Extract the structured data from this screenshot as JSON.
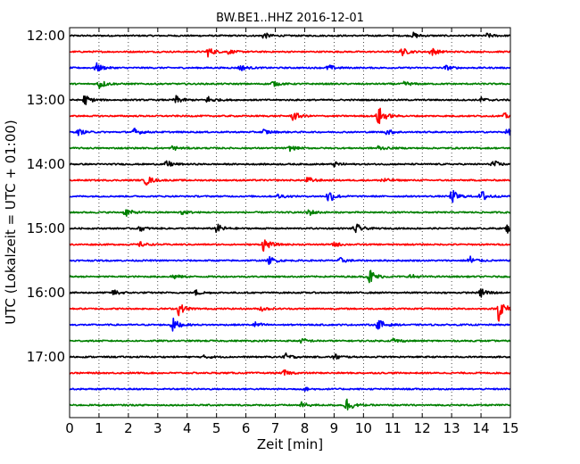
{
  "chart_data": {
    "type": "line",
    "title": "BW.BE1..HHZ 2016-12-01",
    "xlabel": "Zeit  [min]",
    "ylabel": "UTC (Lokalzeit = UTC + 01:00)",
    "xlim": [
      0,
      15
    ],
    "x_ticks": [
      "0",
      "1",
      "2",
      "3",
      "4",
      "5",
      "6",
      "7",
      "8",
      "9",
      "10",
      "11",
      "12",
      "13",
      "14",
      "15"
    ],
    "y_time_labels": [
      "12:00",
      "13:00",
      "14:00",
      "15:00",
      "16:00",
      "17:00"
    ],
    "grid": "vertical dotted lines at each minute",
    "colors": [
      "#000000",
      "#ff0000",
      "#0000ff",
      "#008000"
    ],
    "traces": [
      {
        "start": "12:00",
        "events": [
          [
            6.6,
            0.4
          ],
          [
            11.7,
            0.35
          ],
          [
            14.2,
            0.3
          ]
        ]
      },
      {
        "start": "12:15",
        "events": [
          [
            4.7,
            0.6
          ],
          [
            11.3,
            0.5
          ],
          [
            12.3,
            0.55
          ],
          [
            5.4,
            0.25
          ]
        ]
      },
      {
        "start": "12:30",
        "events": [
          [
            0.9,
            0.6
          ],
          [
            5.8,
            0.4
          ],
          [
            8.8,
            0.4
          ],
          [
            12.8,
            0.3
          ]
        ]
      },
      {
        "start": "12:45",
        "events": [
          [
            1.0,
            0.65
          ],
          [
            6.9,
            0.35
          ],
          [
            11.4,
            0.3
          ]
        ]
      },
      {
        "start": "13:00",
        "events": [
          [
            0.5,
            0.7
          ],
          [
            3.6,
            0.55
          ],
          [
            4.7,
            0.5
          ],
          [
            14.0,
            0.3
          ]
        ]
      },
      {
        "start": "13:15",
        "events": [
          [
            7.6,
            0.6
          ],
          [
            10.5,
            1.35
          ],
          [
            14.8,
            0.35
          ]
        ]
      },
      {
        "start": "13:30",
        "events": [
          [
            0.3,
            0.35
          ],
          [
            2.2,
            0.45
          ],
          [
            6.6,
            0.35
          ],
          [
            10.8,
            0.35
          ],
          [
            14.9,
            0.4
          ]
        ]
      },
      {
        "start": "13:45",
        "events": [
          [
            3.5,
            0.3
          ],
          [
            7.5,
            0.3
          ],
          [
            10.5,
            0.3
          ]
        ]
      },
      {
        "start": "14:00",
        "events": [
          [
            3.3,
            0.45
          ],
          [
            9.0,
            0.3
          ],
          [
            14.4,
            0.5
          ]
        ]
      },
      {
        "start": "14:15",
        "events": [
          [
            2.6,
            0.65
          ],
          [
            8.1,
            0.4
          ],
          [
            10.6,
            0.4
          ]
        ]
      },
      {
        "start": "14:30",
        "events": [
          [
            8.8,
            0.9
          ],
          [
            13.0,
            0.9
          ],
          [
            14.0,
            0.85
          ],
          [
            7.1,
            0.3
          ]
        ]
      },
      {
        "start": "14:45",
        "events": [
          [
            1.9,
            0.55
          ],
          [
            8.1,
            0.5
          ],
          [
            3.8,
            0.35
          ]
        ]
      },
      {
        "start": "15:00",
        "events": [
          [
            5.0,
            0.6
          ],
          [
            9.7,
            0.75
          ],
          [
            14.9,
            0.55
          ],
          [
            2.4,
            0.3
          ]
        ]
      },
      {
        "start": "15:15",
        "events": [
          [
            6.6,
            0.85
          ],
          [
            9.0,
            0.3
          ],
          [
            2.4,
            0.3
          ]
        ]
      },
      {
        "start": "15:30",
        "events": [
          [
            6.8,
            0.5
          ],
          [
            9.2,
            0.35
          ],
          [
            13.6,
            0.7
          ]
        ]
      },
      {
        "start": "15:45",
        "events": [
          [
            10.2,
            1.05
          ],
          [
            3.5,
            0.35
          ],
          [
            11.6,
            0.3
          ]
        ]
      },
      {
        "start": "16:00",
        "events": [
          [
            1.5,
            0.4
          ],
          [
            4.3,
            0.35
          ],
          [
            14.0,
            0.7
          ]
        ]
      },
      {
        "start": "16:15",
        "events": [
          [
            3.7,
            0.85
          ],
          [
            14.6,
            1.6
          ],
          [
            6.5,
            0.3
          ]
        ]
      },
      {
        "start": "16:30",
        "events": [
          [
            3.5,
            0.9
          ],
          [
            10.5,
            0.8
          ],
          [
            6.3,
            0.35
          ]
        ]
      },
      {
        "start": "16:45",
        "events": [
          [
            7.9,
            0.35
          ],
          [
            11.0,
            0.35
          ]
        ]
      },
      {
        "start": "17:00",
        "events": [
          [
            7.3,
            0.55
          ],
          [
            9.0,
            0.4
          ],
          [
            4.6,
            0.25
          ]
        ]
      },
      {
        "start": "17:15",
        "events": [
          [
            7.3,
            0.35
          ]
        ]
      },
      {
        "start": "17:30",
        "events": [
          [
            8.0,
            0.2
          ]
        ]
      },
      {
        "start": "17:45",
        "events": [
          [
            9.4,
            1.05
          ],
          [
            7.9,
            0.35
          ]
        ]
      }
    ]
  }
}
